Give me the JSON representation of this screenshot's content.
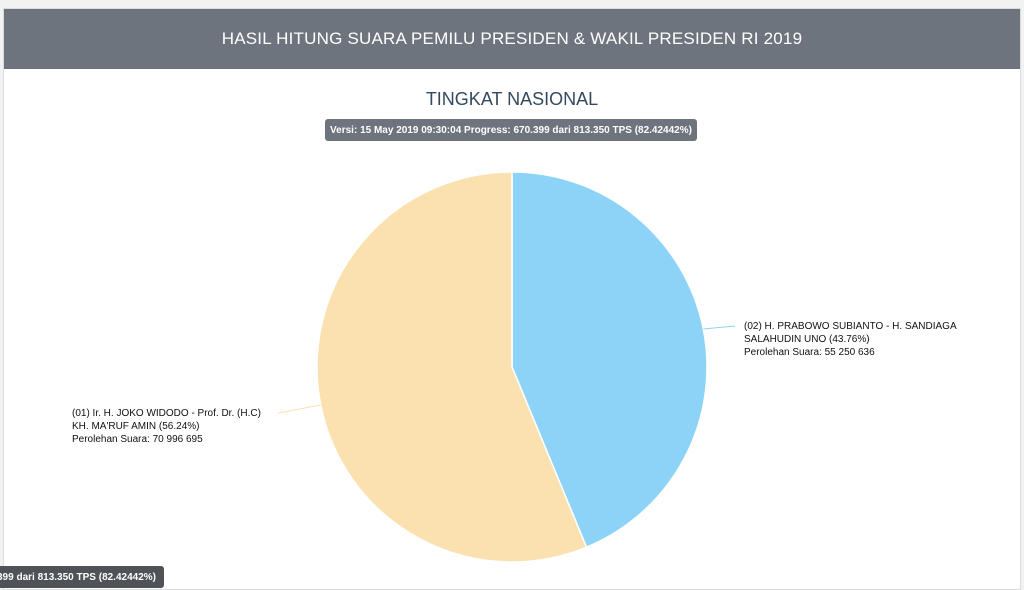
{
  "header": {
    "title": "HASIL HITUNG SUARA PEMILU PRESIDEN & WAKIL PRESIDEN RI 2019"
  },
  "subtitle": "TINGKAT NASIONAL",
  "version_badge": "Versi: 15 May 2019 09:30:04 Progress: 670.399 dari 813.350 TPS (82.42442%)",
  "floating_badge": "399 dari 813.350 TPS (82.42442%)",
  "chart_data": {
    "type": "pie",
    "slices": [
      {
        "label": "(02) H. PRABOWO SUBIANTO - H. SANDIAGA SALAHUDIN UNO (43.76%)",
        "label_lines": [
          "(02) H. PRABOWO SUBIANTO - H. SANDIAGA",
          "SALAHUDIN UNO (43.76%)",
          "Perolehan Suara: 55 250 636"
        ],
        "percent": 43.76,
        "votes": 55250636,
        "color": "#8dd3f8"
      },
      {
        "label": "(01) Ir. H. JOKO WIDODO - Prof. Dr. (H.C) KH. MA'RUF AMIN (56.24%)",
        "label_lines": [
          "(01) Ir. H. JOKO WIDODO - Prof. Dr. (H.C)",
          "KH. MA'RUF AMIN (56.24%)",
          "Perolehan Suara: 70 996 695"
        ],
        "percent": 56.24,
        "votes": 70996695,
        "color": "#fce1b0"
      }
    ]
  }
}
